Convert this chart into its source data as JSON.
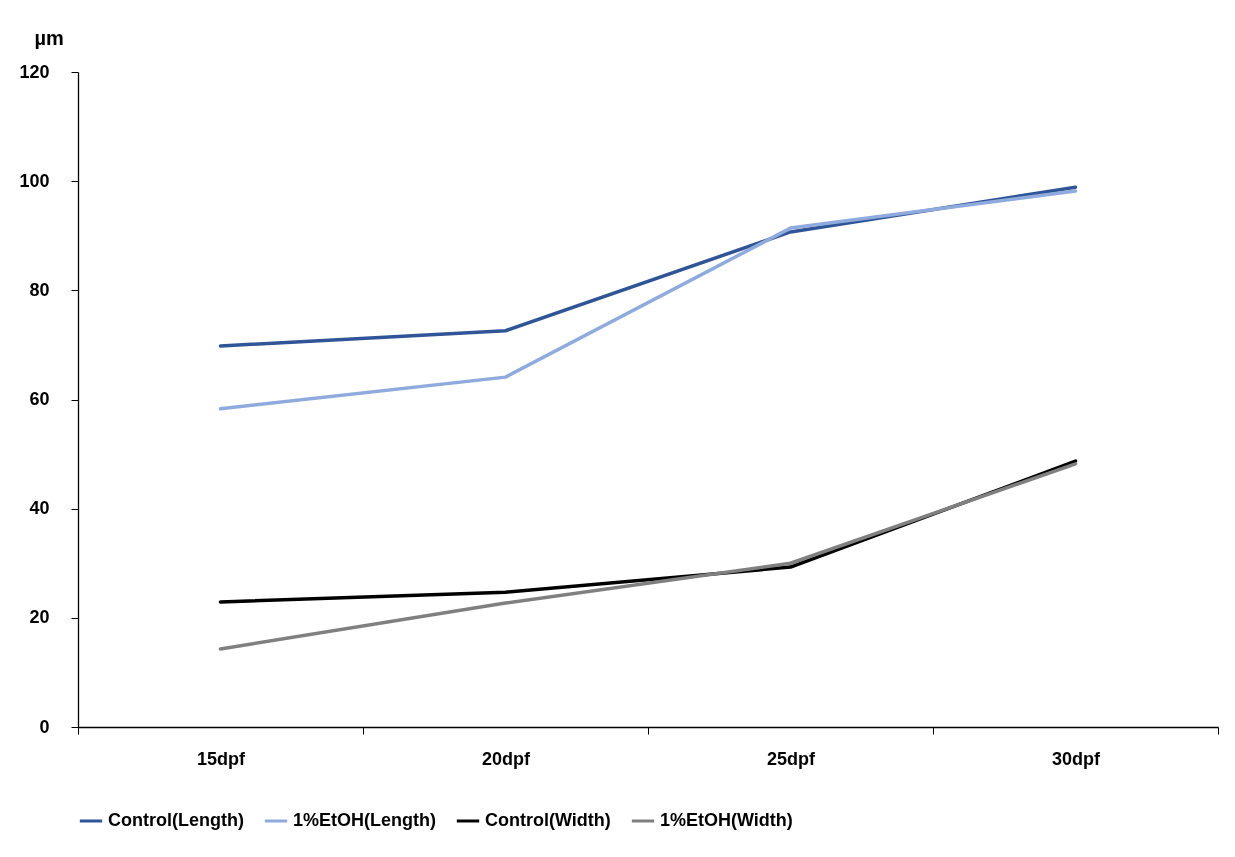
{
  "chart_data": {
    "type": "line",
    "ylabel": "µm",
    "categories": [
      "15dpf",
      "20dpf",
      "25dpf",
      "30dpf"
    ],
    "series": [
      {
        "name": "Control(Length)",
        "color": "#2f5597",
        "values": [
          69.8,
          72.6,
          90.7,
          98.9
        ]
      },
      {
        "name": "1%EtOH(Length)",
        "color": "#8faadc",
        "values": [
          58.3,
          64.1,
          91.4,
          98.2
        ]
      },
      {
        "name": "Control(Width)",
        "color": "#000000",
        "values": [
          22.9,
          24.7,
          29.3,
          48.7
        ]
      },
      {
        "name": "1%EtOH(Width)",
        "color": "#808080",
        "values": [
          14.3,
          22.7,
          30.0,
          48.2
        ]
      }
    ],
    "ylim": [
      0,
      120
    ],
    "yticks": [
      0,
      20,
      40,
      60,
      80,
      100,
      120
    ],
    "grid": false,
    "legend": "bottom",
    "marker": "none",
    "line_style": "solid"
  }
}
